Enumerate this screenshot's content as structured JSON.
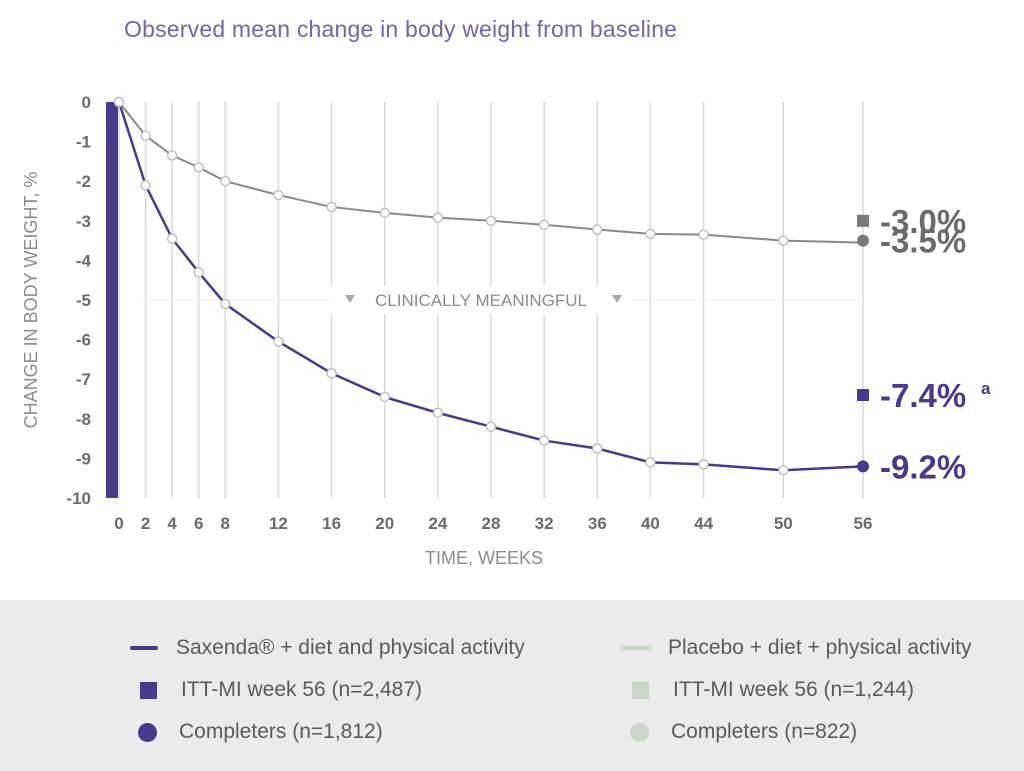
{
  "title": "Observed mean change in body weight from baseline",
  "colors": {
    "saxenda": "#463a8f",
    "placebo_line": "#8a8a8a",
    "placebo_marker": "#7a7a7a",
    "grid": "#d9d9d9",
    "axis_text": "#6b6b6b",
    "legend_bg": "#ecebeb",
    "placebo_legend": "#c9d8c6"
  },
  "chart_data": {
    "type": "line",
    "title": "Observed mean change in body weight from baseline",
    "xlabel": "TIME, WEEKS",
    "ylabel": "CHANGE IN BODY WEIGHT, %",
    "x_ticks": [
      0,
      2,
      4,
      6,
      8,
      12,
      16,
      20,
      24,
      28,
      32,
      36,
      40,
      44,
      50,
      56
    ],
    "y_ticks": [
      0,
      -1,
      -2,
      -3,
      -4,
      -5,
      -6,
      -7,
      -8,
      -9,
      -10
    ],
    "ylim": [
      -10,
      0
    ],
    "xlim": [
      0,
      56
    ],
    "grid": "vertical",
    "reference_line": {
      "label": "CLINICALLY MEANINGFUL",
      "y": -5
    },
    "series": [
      {
        "name": "Saxenda® + diet and physical activity",
        "x": [
          0,
          2,
          4,
          6,
          8,
          12,
          16,
          20,
          24,
          28,
          32,
          36,
          40,
          44,
          50,
          56
        ],
        "values": [
          0,
          -2.1,
          -3.45,
          -4.3,
          -5.1,
          -6.05,
          -6.85,
          -7.45,
          -7.85,
          -8.2,
          -8.55,
          -8.75,
          -9.1,
          -9.15,
          -9.3,
          -9.2
        ]
      },
      {
        "name": "Placebo + diet + physical activity",
        "x": [
          0,
          2,
          4,
          6,
          8,
          12,
          16,
          20,
          24,
          28,
          32,
          36,
          40,
          44,
          50,
          56
        ],
        "values": [
          0,
          -0.85,
          -1.35,
          -1.65,
          -2.0,
          -2.35,
          -2.65,
          -2.8,
          -2.92,
          -3.0,
          -3.1,
          -3.22,
          -3.33,
          -3.35,
          -3.5,
          -3.55
        ]
      }
    ],
    "endpoints": [
      {
        "series": "saxenda",
        "marker": "square",
        "y": -7.4,
        "label": "-7.4%",
        "superscript": "a"
      },
      {
        "series": "saxenda",
        "marker": "circle",
        "y": -9.2,
        "label": "-9.2%",
        "superscript": ""
      },
      {
        "series": "placebo",
        "marker": "square",
        "y": -3.0,
        "label": "-3.0%",
        "superscript": ""
      },
      {
        "series": "placebo",
        "marker": "circle",
        "y": -3.5,
        "label": "-3.5%",
        "superscript": ""
      }
    ]
  },
  "legend": {
    "saxenda_line": "Saxenda® + diet and physical activity",
    "saxenda_itt": "ITT-MI week 56 (n=2,487)",
    "saxenda_completers": "Completers (n=1,812)",
    "placebo_line": "Placebo + diet + physical activity",
    "placebo_itt": "ITT-MI week 56 (n=1,244)",
    "placebo_completers": "Completers (n=822)"
  }
}
